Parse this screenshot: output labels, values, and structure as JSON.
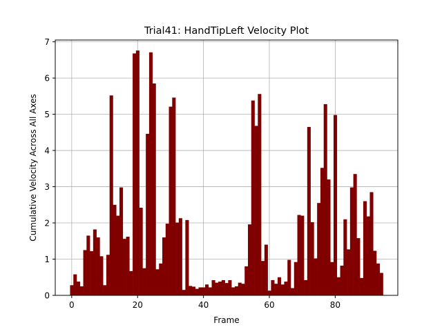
{
  "chart_data": {
    "type": "bar",
    "title": "Trial41: HandTipLeft Velocity Plot",
    "xlabel": "Frame",
    "ylabel": "Cumulative Velocity Across All Axes",
    "xlim": [
      -5,
      99
    ],
    "ylim": [
      0,
      7.05
    ],
    "xticks": [
      0,
      20,
      40,
      60,
      80
    ],
    "yticks": [
      0,
      1,
      2,
      3,
      4,
      5,
      6,
      7
    ],
    "grid": true,
    "bar_color": "#800000",
    "x": [
      0,
      1,
      2,
      3,
      4,
      5,
      6,
      7,
      8,
      9,
      10,
      11,
      12,
      13,
      14,
      15,
      16,
      17,
      18,
      19,
      20,
      21,
      22,
      23,
      24,
      25,
      26,
      27,
      28,
      29,
      30,
      31,
      32,
      33,
      34,
      35,
      36,
      37,
      38,
      39,
      40,
      41,
      42,
      43,
      44,
      45,
      46,
      47,
      48,
      49,
      50,
      51,
      52,
      53,
      54,
      55,
      56,
      57,
      58,
      59,
      60,
      61,
      62,
      63,
      64,
      65,
      66,
      67,
      68,
      69,
      70,
      71,
      72,
      73,
      74,
      75,
      76,
      77,
      78,
      79,
      80,
      81,
      82,
      83,
      84,
      85,
      86,
      87,
      88,
      89,
      90,
      91,
      92,
      93,
      94
    ],
    "values": [
      0.28,
      0.58,
      0.38,
      0.25,
      1.25,
      1.65,
      1.22,
      1.82,
      1.6,
      1.08,
      0.28,
      1.12,
      5.52,
      2.5,
      2.2,
      2.98,
      1.56,
      1.62,
      0.67,
      6.68,
      6.76,
      2.42,
      0.75,
      4.46,
      6.71,
      5.85,
      0.72,
      0.88,
      1.6,
      1.98,
      5.21,
      5.46,
      2.01,
      2.13,
      0.15,
      2.08,
      0.26,
      0.24,
      0.18,
      0.22,
      0.22,
      0.3,
      0.22,
      0.42,
      0.35,
      0.38,
      0.42,
      0.34,
      0.42,
      0.22,
      0.25,
      0.35,
      0.32,
      0.8,
      1.96,
      5.38,
      4.68,
      5.56,
      0.95,
      1.4,
      0.13,
      0.42,
      0.32,
      0.5,
      0.3,
      0.38,
      0.98,
      0.2,
      0.92,
      2.22,
      2.2,
      0.42,
      4.65,
      2.02,
      1.02,
      2.55,
      3.52,
      5.28,
      3.2,
      0.92,
      4.98,
      0.5,
      0.82,
      2.1,
      1.27,
      2.98,
      3.35,
      1.58,
      0.48,
      2.6,
      2.18,
      2.85,
      1.23,
      0.88,
      0.62
    ]
  }
}
